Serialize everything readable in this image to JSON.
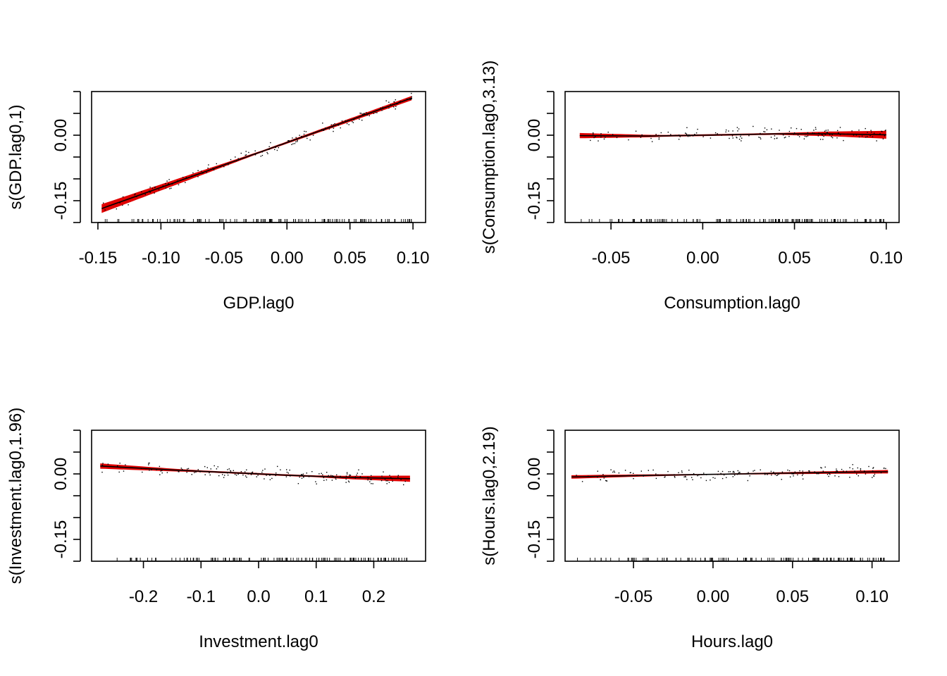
{
  "chart_data": [
    {
      "type": "scatter",
      "xlabel": "GDP.lag0",
      "ylabel": "s(GDP.lag0,1)",
      "xlim": [
        -0.155,
        0.11
      ],
      "ylim": [
        -0.2,
        0.1
      ],
      "x_ticks": [
        "-0.15",
        "-0.10",
        "-0.05",
        "0.00",
        "0.05",
        "0.10"
      ],
      "x_tick_values": [
        -0.15,
        -0.1,
        -0.05,
        0.0,
        0.05,
        0.1
      ],
      "y_ticks": [
        "-0.15",
        "0.00"
      ],
      "y_tick_values": [
        -0.15,
        0.0
      ],
      "y_minor_ticks": [
        -0.2,
        -0.1,
        -0.05,
        0.05,
        0.1
      ],
      "x_range": [
        -0.147,
        0.099
      ],
      "smooth": [
        [
          -0.147,
          -0.168
        ],
        [
          0.099,
          0.085
        ]
      ],
      "band_halfwidth": [
        [
          -0.147,
          0.01
        ],
        [
          -0.02,
          0.002
        ],
        [
          0.099,
          0.005
        ]
      ],
      "point_spread": 0.008
    },
    {
      "type": "scatter",
      "xlabel": "Consumption.lag0",
      "ylabel": "s(Consumption.lag0,3.13)",
      "xlim": [
        -0.075,
        0.107
      ],
      "ylim": [
        -0.2,
        0.1
      ],
      "x_ticks": [
        "-0.05",
        "0.00",
        "0.05",
        "0.10"
      ],
      "x_tick_values": [
        -0.05,
        0.0,
        0.05,
        0.1
      ],
      "y_ticks": [
        "-0.15",
        "0.00"
      ],
      "y_tick_values": [
        -0.15,
        0.0
      ],
      "y_minor_ticks": [
        -0.2,
        -0.1,
        -0.05,
        0.05,
        0.1
      ],
      "x_range": [
        -0.067,
        0.1
      ],
      "smooth": [
        [
          -0.067,
          -0.001
        ],
        [
          -0.03,
          -0.002
        ],
        [
          0.0,
          0.0
        ],
        [
          0.04,
          0.003
        ],
        [
          0.07,
          0.003
        ],
        [
          0.1,
          0.001
        ]
      ],
      "band_halfwidth": [
        [
          -0.067,
          0.006
        ],
        [
          -0.02,
          0.002
        ],
        [
          0.04,
          0.002
        ],
        [
          0.1,
          0.009
        ]
      ],
      "point_spread": 0.009
    },
    {
      "type": "scatter",
      "xlabel": "Investment.lag0",
      "ylabel": "s(Investment.lag0,1.96)",
      "xlim": [
        -0.29,
        0.29
      ],
      "ylim": [
        -0.2,
        0.1
      ],
      "x_ticks": [
        "-0.2",
        "-0.1",
        "0.0",
        "0.1",
        "0.2"
      ],
      "x_tick_values": [
        -0.2,
        -0.1,
        0.0,
        0.1,
        0.2
      ],
      "y_ticks": [
        "-0.15",
        "0.00"
      ],
      "y_tick_values": [
        -0.15,
        0.0
      ],
      "y_minor_ticks": [
        -0.2,
        -0.1,
        -0.05,
        0.05,
        0.1
      ],
      "x_range": [
        -0.275,
        0.263
      ],
      "smooth": [
        [
          -0.275,
          0.018
        ],
        [
          -0.15,
          0.009
        ],
        [
          -0.05,
          0.003
        ],
        [
          0.05,
          -0.003
        ],
        [
          0.15,
          -0.008
        ],
        [
          0.263,
          -0.011
        ]
      ],
      "band_halfwidth": [
        [
          -0.275,
          0.006
        ],
        [
          -0.1,
          0.002
        ],
        [
          0.1,
          0.002
        ],
        [
          0.263,
          0.007
        ]
      ],
      "point_spread": 0.009
    },
    {
      "type": "scatter",
      "xlabel": "Hours.lag0",
      "ylabel": "s(Hours.lag0,2.19)",
      "xlim": [
        -0.093,
        0.117
      ],
      "ylim": [
        -0.2,
        0.1
      ],
      "x_ticks": [
        "-0.05",
        "0.00",
        "0.05",
        "0.10"
      ],
      "x_tick_values": [
        -0.05,
        0.0,
        0.05,
        0.1
      ],
      "y_ticks": [
        "-0.15",
        "0.00"
      ],
      "y_tick_values": [
        -0.15,
        0.0
      ],
      "y_minor_ticks": [
        -0.2,
        -0.1,
        -0.05,
        0.05,
        0.1
      ],
      "x_range": [
        -0.089,
        0.11
      ],
      "smooth": [
        [
          -0.089,
          -0.007
        ],
        [
          -0.05,
          -0.004
        ],
        [
          0.0,
          -0.001
        ],
        [
          0.05,
          0.002
        ],
        [
          0.11,
          0.005
        ]
      ],
      "band_halfwidth": [
        [
          -0.089,
          0.004
        ],
        [
          0.0,
          0.001
        ],
        [
          0.11,
          0.004
        ]
      ],
      "point_spread": 0.008
    }
  ]
}
